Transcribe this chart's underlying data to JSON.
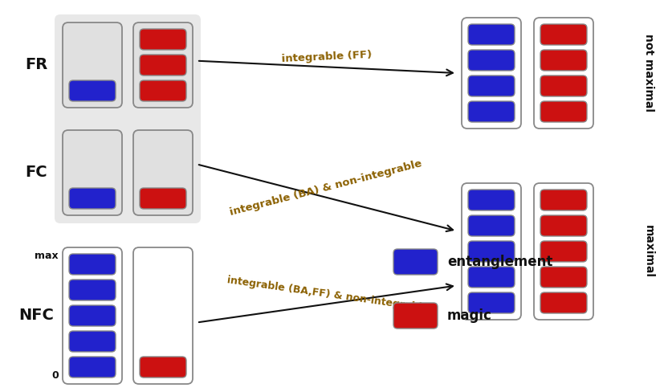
{
  "bg_color": "#ffffff",
  "gray_bg": "#e8e8e8",
  "blue": "#2222cc",
  "red": "#cc1111",
  "text_color": "#111111",
  "arrow_color": "#111111",
  "border_color": "#888888",
  "label_color": "#8B6000",
  "fr_label": "FR",
  "fc_label": "FC",
  "nfc_label": "NFC",
  "max_label": "max",
  "zero_label": "0",
  "not_maximal_label": "not maximal",
  "maximal_label": "maximal",
  "entanglement_label": "entanglement",
  "magic_label": "magic",
  "arrow1_text": "integrable (FF)",
  "arrow2_text": "integrable (BA) & non-integrable",
  "arrow3_text": "integrable (BA,FF) & non-integrable",
  "figw": 8.08,
  "figh": 4.55
}
